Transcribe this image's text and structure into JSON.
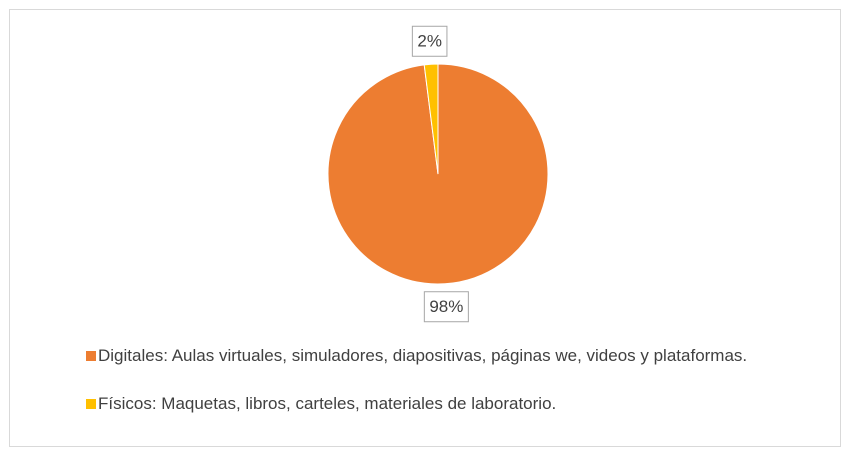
{
  "chart_data": {
    "type": "pie",
    "categories": [
      "Digitales: Aulas virtuales, simuladores, diapositivas, páginas we, videos y plataformas.",
      "Físicos: Maquetas, libros, carteles, materiales de laboratorio."
    ],
    "values": [
      98,
      2
    ],
    "value_labels": [
      "98%",
      "2%"
    ],
    "colors": [
      "#ed7d31",
      "#ffc000"
    ],
    "legend": "bottom"
  }
}
